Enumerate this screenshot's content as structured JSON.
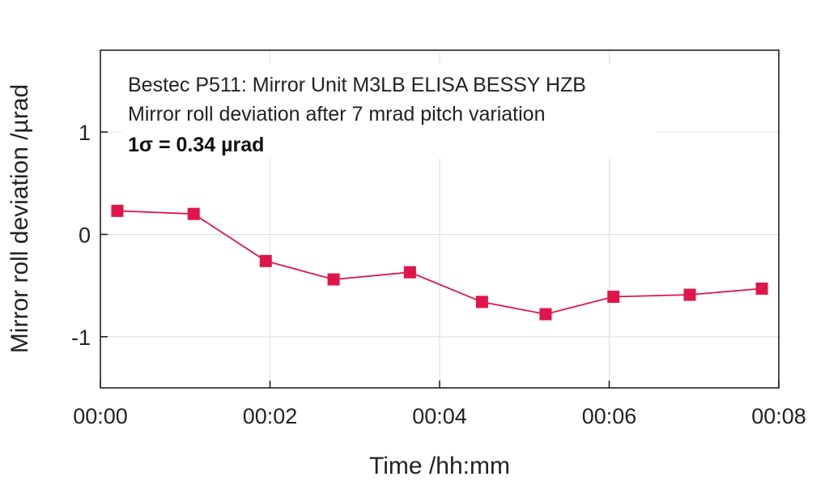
{
  "chart_data": {
    "type": "line",
    "xlabel": "Time /hh:mm",
    "ylabel": "Mirror roll deviation /µrad",
    "xlim": [
      0,
      8
    ],
    "ylim": [
      -1.5,
      1.8
    ],
    "x_ticks": [
      0,
      2,
      4,
      6,
      8
    ],
    "x_tick_labels": [
      "00:00",
      "00:02",
      "00:04",
      "00:06",
      "00:08"
    ],
    "y_ticks": [
      -1,
      0,
      1
    ],
    "y_tick_labels": [
      "-1",
      "0",
      "1"
    ],
    "grid": true,
    "annotations": [
      "Bestec P511: Mirror Unit M3LB ELISA BESSY HZB",
      "Mirror roll deviation after 7 mrad pitch variation",
      "1σ = 0.34 µrad"
    ],
    "series": [
      {
        "color": "#e0154a",
        "marker": "square",
        "x": [
          0.2,
          1.1,
          1.95,
          2.75,
          3.65,
          4.5,
          5.25,
          6.05,
          6.95,
          7.8
        ],
        "y": [
          0.23,
          0.2,
          -0.26,
          -0.44,
          -0.37,
          -0.66,
          -0.78,
          -0.61,
          -0.59,
          -0.53
        ]
      }
    ]
  }
}
